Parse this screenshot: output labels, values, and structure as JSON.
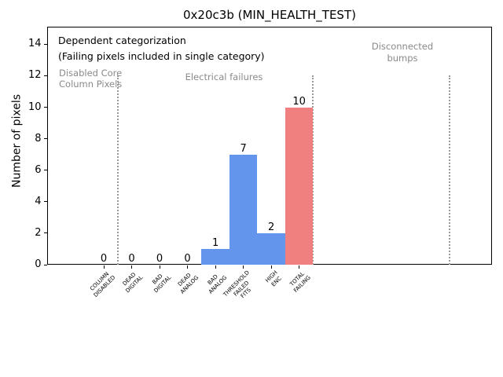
{
  "figure": {
    "title": "0x20c3b (MIN_HEALTH_TEST)"
  },
  "chart_data": {
    "type": "bar",
    "title": "0x20c3b (MIN_HEALTH_TEST)",
    "xlabel": "",
    "ylabel": "Number of pixels",
    "categories": [
      "COLUMN\nDISABLED",
      "DEAD\nDIGITAL",
      "BAD\nDIGITAL",
      "DEAD\nANALOG",
      "BAD\nANALOG",
      "THRESHOLD\nFAILED\nFITS",
      "HIGH\nENC",
      "TOTAL\nFAILING"
    ],
    "values": [
      0,
      0,
      0,
      0,
      1,
      7,
      2,
      10
    ],
    "bar_colors": [
      "#6495ed",
      "#6495ed",
      "#6495ed",
      "#6495ed",
      "#6495ed",
      "#6495ed",
      "#6495ed",
      "#f08080"
    ],
    "yticks": [
      0,
      2,
      4,
      6,
      8,
      10,
      12,
      14
    ],
    "ylim": [
      0,
      15.1
    ],
    "grid": false,
    "legend_position": "none",
    "bar_value_labels_shown": true,
    "notes": [
      "Dependent categorization",
      "(Failing pixels included in single category)"
    ],
    "regions": [
      {
        "label": "Disabled Core\nColumn Pixels"
      },
      {
        "label": "Electrical failures"
      },
      {
        "label": "Disconnected\nbumps"
      }
    ],
    "separator_style": "dotted",
    "colors": {
      "bar_blue": "#6495ed",
      "bar_total_red": "#f08080",
      "region_text_gray": "#8a8a8a",
      "separator_gray": "#999999"
    }
  }
}
